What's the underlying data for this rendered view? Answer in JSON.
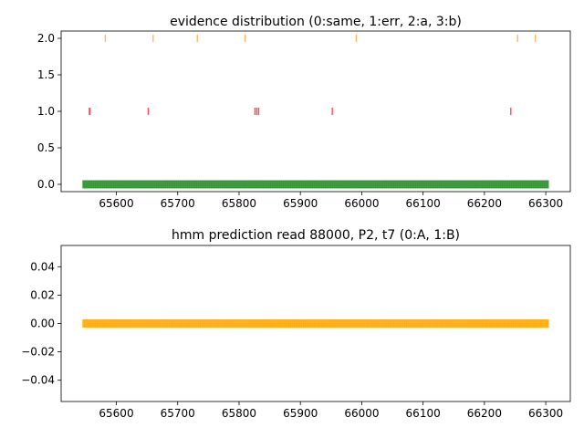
{
  "chart_data": [
    {
      "type": "scatter",
      "title": "evidence distribution (0:same, 1:err, 2:a, 3:b)",
      "xlabel": "",
      "ylabel": "",
      "xlim": [
        65510,
        66340
      ],
      "ylim": [
        -0.1,
        2.1
      ],
      "xticks": [
        65600,
        65700,
        65800,
        65900,
        66000,
        66100,
        66200,
        66300
      ],
      "yticks": [
        0.0,
        0.5,
        1.0,
        1.5,
        2.0
      ],
      "ytick_labels": [
        "0.0",
        "0.5",
        "1.0",
        "1.5",
        "2.0"
      ],
      "grid": false,
      "series": [
        {
          "value": 0,
          "color": "#228b22",
          "x_range": [
            65545,
            66305
          ]
        },
        {
          "value": 1,
          "color": "#ff4d4d",
          "x": [
            65556,
            65557,
            65652,
            65826,
            65829,
            65832,
            65952,
            66243
          ]
        },
        {
          "value": 2,
          "color": "#ffb560",
          "x": [
            65582,
            65660,
            65732,
            65810,
            65991,
            66254,
            66283
          ]
        }
      ]
    },
    {
      "type": "scatter",
      "title": "hmm prediction read 88000, P2, t7 (0:A, 1:B)",
      "xlabel": "",
      "ylabel": "",
      "xlim": [
        65510,
        66340
      ],
      "ylim": [
        -0.055,
        0.055
      ],
      "xticks": [
        65600,
        65700,
        65800,
        65900,
        66000,
        66100,
        66200,
        66300
      ],
      "yticks": [
        -0.04,
        -0.02,
        0.0,
        0.02,
        0.04
      ],
      "ytick_labels": [
        "−0.04",
        "−0.02",
        "0.00",
        "0.02",
        "0.04"
      ],
      "grid": false,
      "series": [
        {
          "value": 0,
          "color": "#ffa500",
          "x_range": [
            65545,
            66305
          ]
        }
      ]
    }
  ]
}
